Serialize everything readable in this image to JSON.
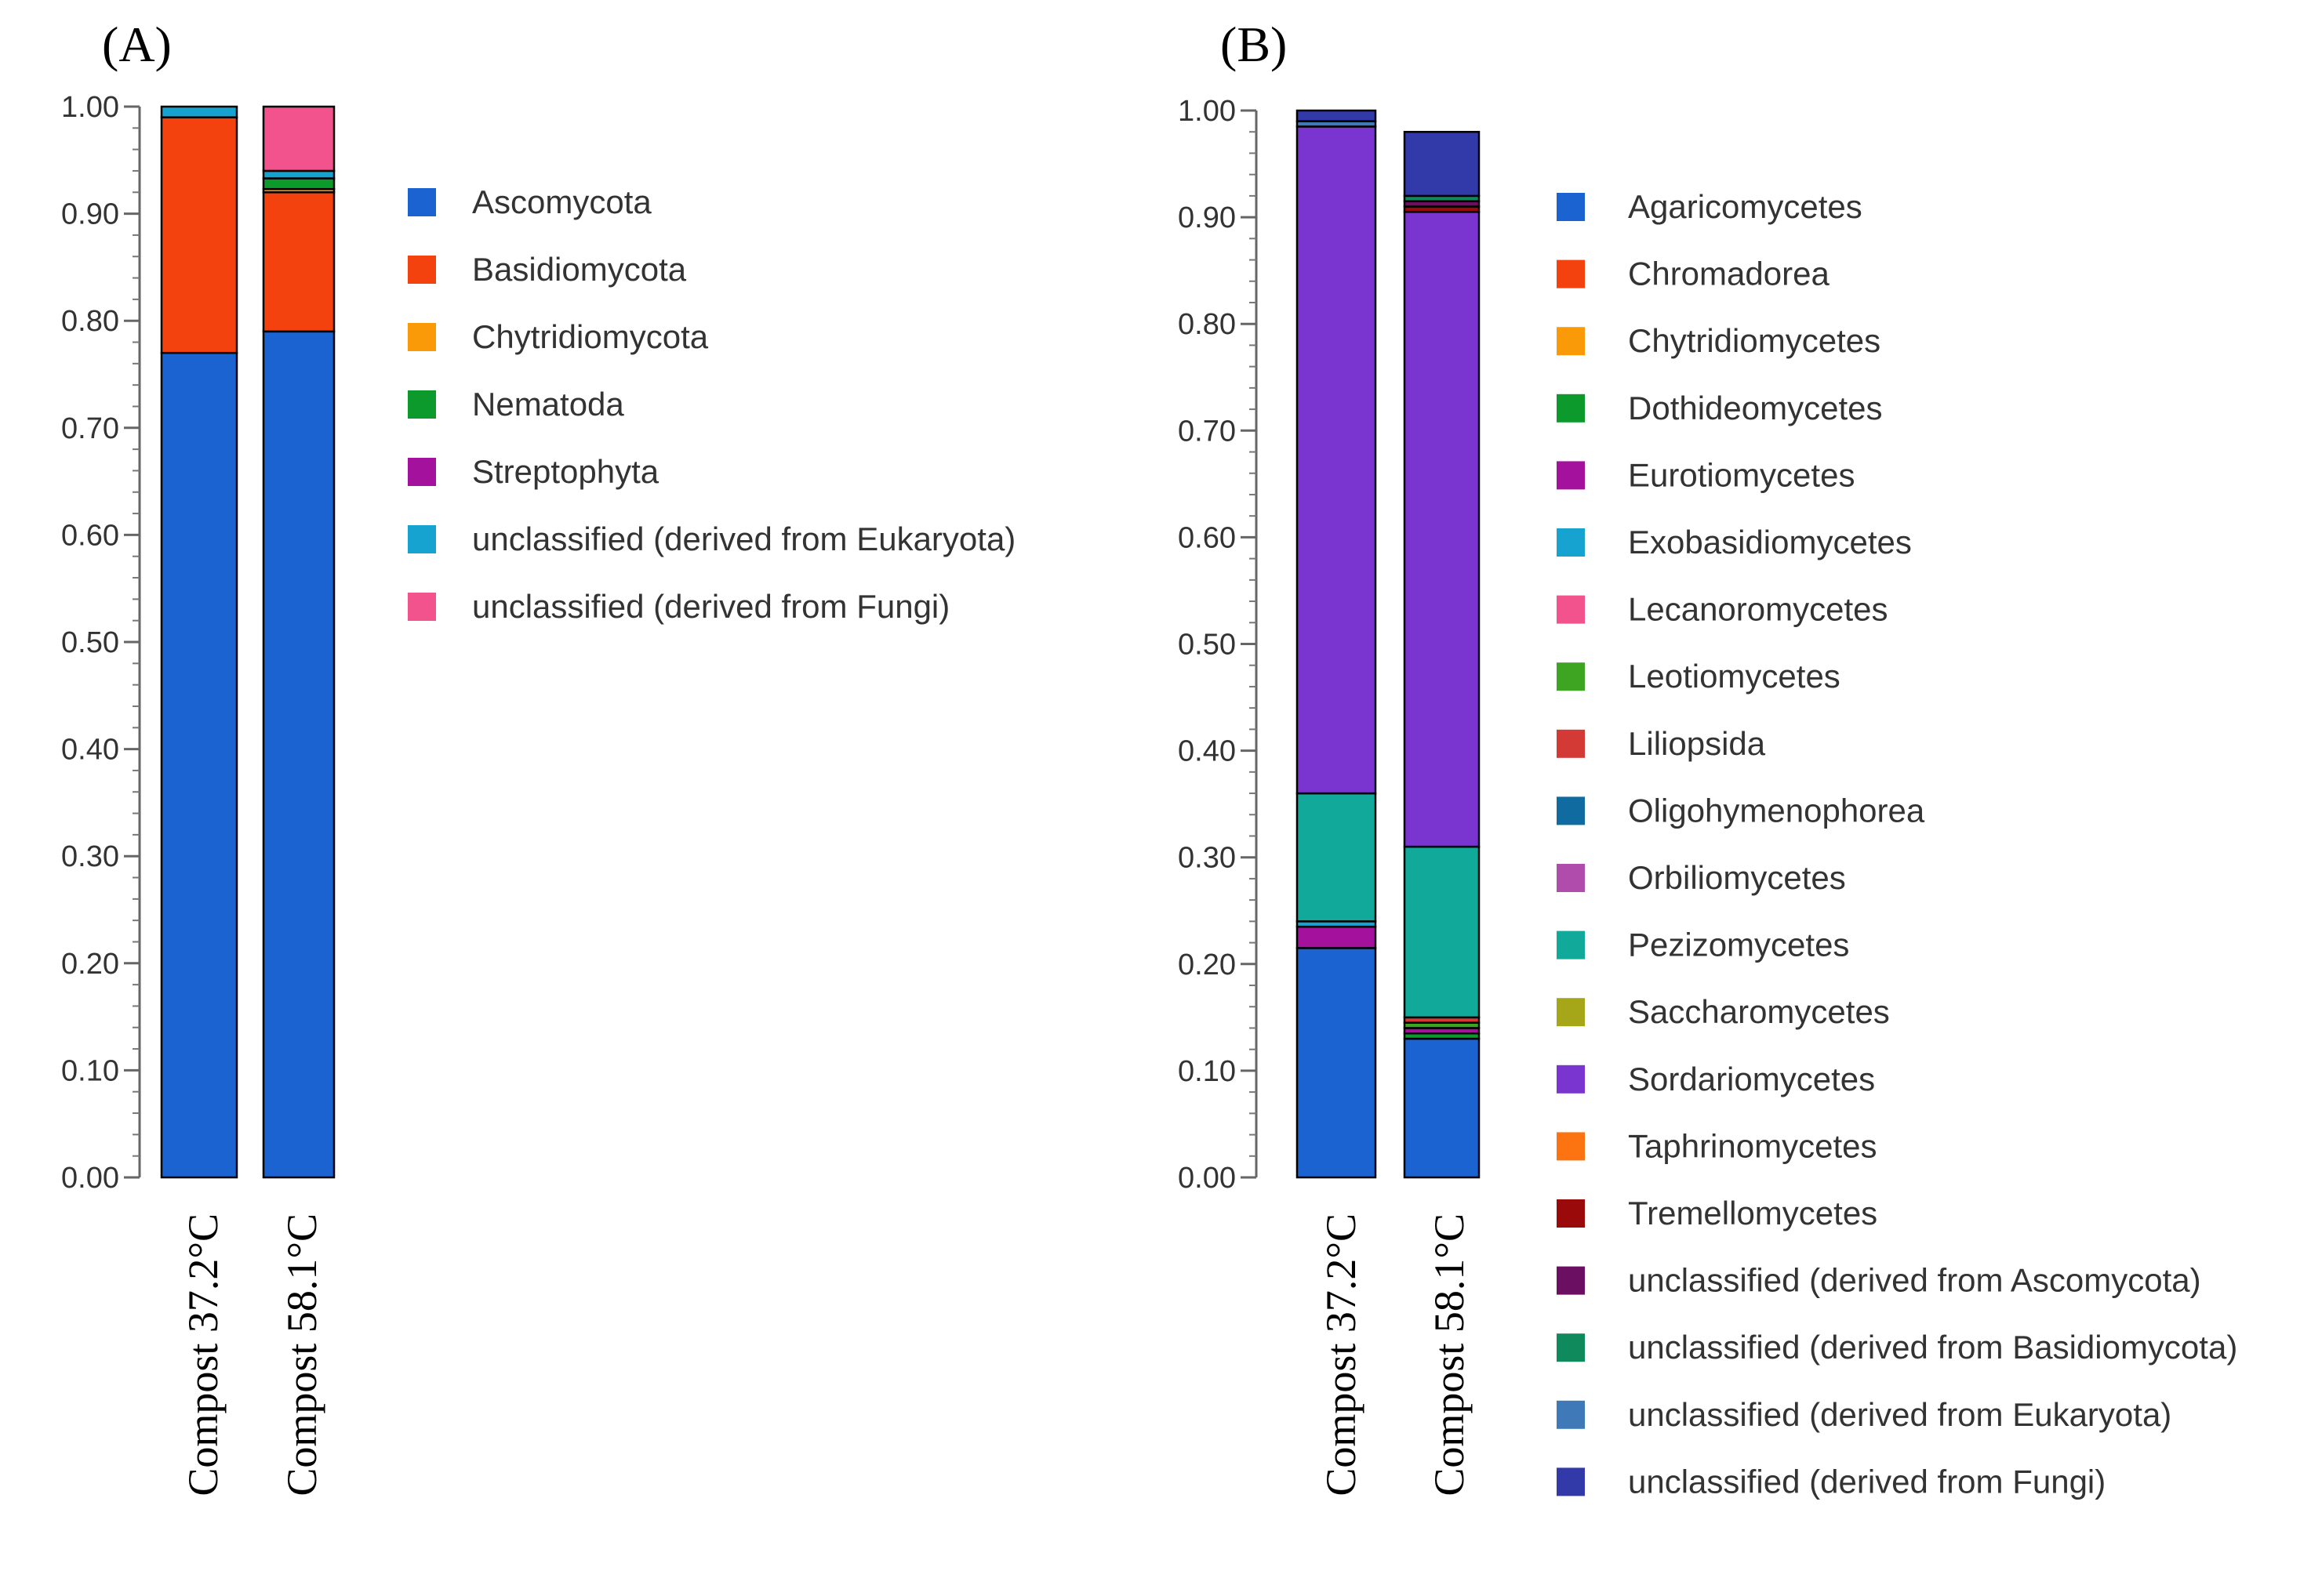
{
  "chart_data": [
    {
      "type": "bar",
      "stacked": true,
      "panel": "(A)",
      "categories": [
        "Compost  37.2°C",
        "Compost  58.1°C"
      ],
      "ylim": [
        0,
        1
      ],
      "yticks": [
        "0.00",
        "0.10",
        "0.20",
        "0.30",
        "0.40",
        "0.50",
        "0.60",
        "0.70",
        "0.80",
        "0.90",
        "1.00"
      ],
      "legend_position": "right",
      "series": [
        {
          "name": "Ascomycota",
          "color": "#1a63d0",
          "values": [
            0.77,
            0.79
          ]
        },
        {
          "name": "Basidiomycota",
          "color": "#f4420f",
          "values": [
            0.22,
            0.13
          ]
        },
        {
          "name": "Chytridiomycota",
          "color": "#fb9a08",
          "values": [
            0.0,
            0.003
          ]
        },
        {
          "name": "Nematoda",
          "color": "#0b9a2b",
          "values": [
            0.0,
            0.01
          ]
        },
        {
          "name": "Streptophyta",
          "color": "#a4119c",
          "values": [
            0.0,
            0.0
          ]
        },
        {
          "name": "unclassified (derived from Eukaryota)",
          "color": "#17a3cf",
          "values": [
            0.01,
            0.007
          ]
        },
        {
          "name": "unclassified (derived from Fungi)",
          "color": "#f2538c",
          "values": [
            0.0,
            0.06
          ]
        }
      ]
    },
    {
      "type": "bar",
      "stacked": true,
      "panel": "(B)",
      "categories": [
        "Compost  37.2°C",
        "Compost  58.1°C"
      ],
      "ylim": [
        0,
        1
      ],
      "yticks": [
        "0.00",
        "0.10",
        "0.20",
        "0.30",
        "0.40",
        "0.50",
        "0.60",
        "0.70",
        "0.80",
        "0.90",
        "1.00"
      ],
      "legend_position": "right",
      "series": [
        {
          "name": "Agaricomycetes",
          "color": "#1a63d0",
          "values": [
            0.215,
            0.13
          ]
        },
        {
          "name": "Chromadorea",
          "color": "#f4420f",
          "values": [
            0.0,
            0.0
          ]
        },
        {
          "name": "Chytridiomycetes",
          "color": "#fb9a08",
          "values": [
            0.0,
            0.0
          ]
        },
        {
          "name": "Dothideomycetes",
          "color": "#0b9a2b",
          "values": [
            0.0,
            0.005
          ]
        },
        {
          "name": "Eurotiomycetes",
          "color": "#a4119c",
          "values": [
            0.02,
            0.005
          ]
        },
        {
          "name": "Exobasidiomycetes",
          "color": "#17a3cf",
          "values": [
            0.005,
            0.0
          ]
        },
        {
          "name": "Lecanoromycetes",
          "color": "#f2538c",
          "values": [
            0.0,
            0.0
          ]
        },
        {
          "name": "Leotiomycetes",
          "color": "#3da521",
          "values": [
            0.0,
            0.005
          ]
        },
        {
          "name": "Liliopsida",
          "color": "#d33a36",
          "values": [
            0.0,
            0.005
          ]
        },
        {
          "name": "Oligohymenophorea",
          "color": "#0f6ba0",
          "values": [
            0.0,
            0.0
          ]
        },
        {
          "name": "Orbiliomycetes",
          "color": "#b04cab",
          "values": [
            0.0,
            0.0
          ]
        },
        {
          "name": "Pezizomycetes",
          "color": "#11a99a",
          "values": [
            0.12,
            0.16
          ]
        },
        {
          "name": "Saccharomycetes",
          "color": "#a6a718",
          "values": [
            0.0,
            0.0
          ]
        },
        {
          "name": "Sordariomycetes",
          "color": "#7a35d0",
          "values": [
            0.625,
            0.595
          ]
        },
        {
          "name": "Taphrinomycetes",
          "color": "#fb7411",
          "values": [
            0.0,
            0.0
          ]
        },
        {
          "name": "Tremellomycetes",
          "color": "#9b0a0a",
          "values": [
            0.0,
            0.005
          ]
        },
        {
          "name": "unclassified (derived from Ascomycota)",
          "color": "#6b0f62",
          "values": [
            0.0,
            0.005
          ]
        },
        {
          "name": "unclassified (derived from Basidiomycota)",
          "color": "#0f8a5c",
          "values": [
            0.0,
            0.005
          ]
        },
        {
          "name": "unclassified (derived from Eukaryota)",
          "color": "#3f79b8",
          "values": [
            0.005,
            0.0
          ]
        },
        {
          "name": "unclassified (derived from Fungi)",
          "color": "#3239a8",
          "values": [
            0.01,
            0.06
          ]
        }
      ]
    }
  ]
}
